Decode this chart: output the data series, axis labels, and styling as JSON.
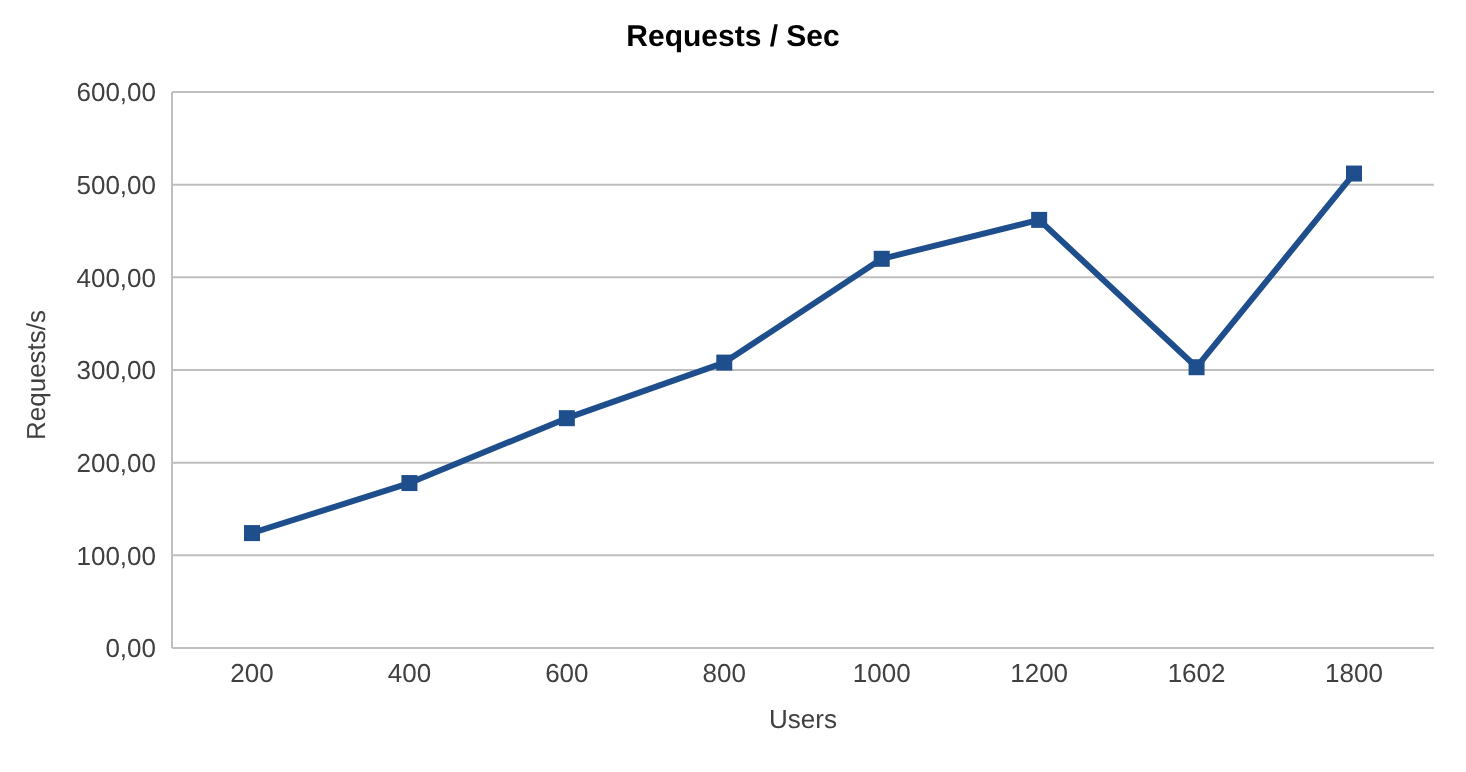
{
  "chart_data": {
    "type": "line",
    "title": "Requests / Sec",
    "xlabel": "Users",
    "ylabel": "Requests/s",
    "categories": [
      "200",
      "400",
      "600",
      "800",
      "1000",
      "1200",
      "1602",
      "1800"
    ],
    "series": [
      {
        "color": "#1f4e8c",
        "values": [
          124,
          178,
          248,
          308,
          420,
          462,
          303,
          512
        ]
      }
    ],
    "ylim": [
      0,
      600
    ],
    "yticks": [
      {
        "value": 0,
        "label": "0,00"
      },
      {
        "value": 100,
        "label": "100,00"
      },
      {
        "value": 200,
        "label": "200,00"
      },
      {
        "value": 300,
        "label": "300,00"
      },
      {
        "value": 400,
        "label": "400,00"
      },
      {
        "value": 500,
        "label": "500,00"
      },
      {
        "value": 600,
        "label": "600,00"
      }
    ],
    "grid": "y",
    "legend": false,
    "marker": "square",
    "line_style": "solid"
  }
}
